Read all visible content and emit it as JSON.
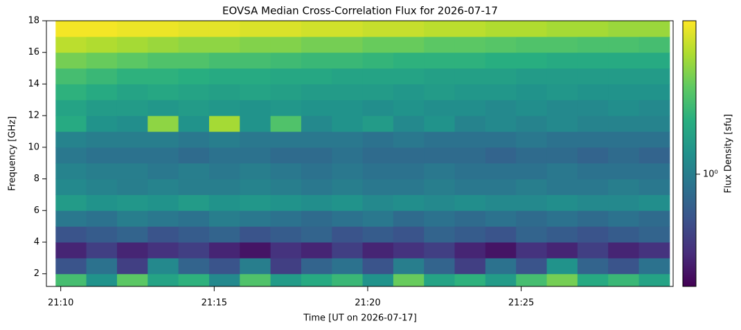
{
  "chart_data": {
    "type": "heatmap",
    "title": "EOVSA Median Cross-Correlation Flux for 2026-07-17",
    "x_label": "Time [UT on 2026-07-17]",
    "y_label": "Frequency [GHz]",
    "colorbar_label": "Flux Density [sfu]",
    "colormap": "viridis",
    "color_scale": "log",
    "clim": [
      0.4,
      3.5
    ],
    "cticks": [
      {
        "value": 1,
        "label": "10⁰"
      }
    ],
    "xlim": [
      "21:09:32",
      "21:29:57"
    ],
    "xticks": [
      "21:10",
      "21:15",
      "21:20",
      "21:25"
    ],
    "ylim": [
      1.2,
      18
    ],
    "yticks": [
      2,
      4,
      6,
      8,
      10,
      12,
      14,
      16,
      18
    ],
    "x": [
      "21:09:50",
      "21:10:50",
      "21:11:50",
      "21:12:50",
      "21:13:50",
      "21:14:50",
      "21:15:50",
      "21:16:50",
      "21:17:50",
      "21:18:50",
      "21:19:50",
      "21:20:50",
      "21:21:50",
      "21:22:50",
      "21:23:50",
      "21:24:50",
      "21:25:50",
      "21:26:50",
      "21:27:50",
      "21:28:50"
    ],
    "y": [
      1.5,
      2.5,
      3.5,
      4.5,
      5.5,
      6.5,
      7.5,
      8.5,
      9.5,
      10.5,
      11.5,
      12.5,
      13.5,
      14.5,
      15.5,
      16.5,
      17.5
    ],
    "z": [
      [
        1.8,
        1.2,
        2.0,
        1.4,
        1.6,
        1.1,
        1.9,
        1.3,
        1.5,
        1.7,
        1.2,
        2.1,
        1.4,
        1.6,
        1.3,
        1.8,
        2.2,
        1.5,
        1.7,
        1.4
      ],
      [
        0.7,
        0.9,
        0.6,
        1.1,
        0.8,
        0.7,
        1.0,
        0.6,
        0.8,
        0.9,
        0.7,
        1.0,
        0.8,
        0.6,
        0.9,
        0.7,
        1.2,
        0.8,
        0.7,
        0.9
      ],
      [
        0.5,
        0.6,
        0.5,
        0.55,
        0.6,
        0.5,
        0.45,
        0.55,
        0.5,
        0.6,
        0.5,
        0.55,
        0.6,
        0.5,
        0.45,
        0.55,
        0.5,
        0.6,
        0.5,
        0.55
      ],
      [
        0.7,
        0.75,
        0.8,
        0.7,
        0.75,
        0.8,
        0.7,
        0.75,
        0.8,
        0.7,
        0.75,
        0.7,
        0.8,
        0.75,
        0.7,
        0.8,
        0.75,
        0.7,
        0.75,
        0.8
      ],
      [
        0.95,
        0.9,
        1.0,
        0.95,
        0.9,
        1.0,
        0.95,
        0.9,
        0.85,
        0.9,
        0.95,
        0.85,
        0.9,
        0.85,
        0.9,
        0.85,
        0.9,
        0.85,
        0.9,
        0.85
      ],
      [
        1.3,
        1.2,
        1.25,
        1.2,
        1.3,
        1.2,
        1.25,
        1.2,
        1.15,
        1.2,
        1.1,
        1.15,
        1.1,
        1.15,
        1.1,
        1.1,
        1.15,
        1.1,
        1.1,
        1.15
      ],
      [
        1.1,
        1.05,
        1.0,
        1.05,
        1.0,
        1.0,
        1.05,
        1.0,
        0.95,
        1.0,
        0.95,
        0.95,
        1.0,
        0.95,
        0.95,
        1.0,
        0.95,
        0.95,
        1.0,
        0.95
      ],
      [
        1.05,
        1.0,
        1.0,
        0.95,
        1.0,
        0.95,
        1.0,
        0.95,
        0.9,
        0.95,
        0.9,
        0.9,
        0.95,
        0.9,
        0.9,
        0.9,
        0.95,
        0.9,
        0.9,
        0.9
      ],
      [
        0.95,
        0.9,
        0.9,
        0.9,
        0.85,
        0.9,
        0.9,
        0.85,
        0.85,
        0.9,
        0.85,
        0.85,
        0.85,
        0.85,
        0.8,
        0.85,
        0.85,
        0.8,
        0.85,
        0.8
      ],
      [
        1.05,
        1.0,
        1.0,
        1.0,
        0.95,
        1.0,
        0.95,
        0.95,
        0.95,
        0.95,
        0.9,
        0.95,
        0.9,
        0.9,
        0.9,
        0.95,
        0.9,
        0.9,
        0.9,
        0.9
      ],
      [
        1.5,
        1.2,
        1.15,
        2.4,
        1.2,
        2.6,
        1.2,
        1.9,
        1.1,
        1.2,
        1.3,
        1.1,
        1.2,
        1.05,
        1.1,
        1.05,
        1.1,
        1.05,
        1.05,
        1.05
      ],
      [
        1.4,
        1.3,
        1.3,
        1.25,
        1.3,
        1.25,
        1.2,
        1.25,
        1.2,
        1.2,
        1.15,
        1.2,
        1.15,
        1.15,
        1.1,
        1.15,
        1.1,
        1.1,
        1.15,
        1.1
      ],
      [
        1.6,
        1.5,
        1.4,
        1.45,
        1.4,
        1.35,
        1.4,
        1.35,
        1.3,
        1.3,
        1.3,
        1.25,
        1.3,
        1.25,
        1.25,
        1.2,
        1.25,
        1.2,
        1.2,
        1.2
      ],
      [
        1.8,
        1.7,
        1.6,
        1.6,
        1.55,
        1.5,
        1.5,
        1.45,
        1.45,
        1.4,
        1.4,
        1.4,
        1.35,
        1.35,
        1.35,
        1.3,
        1.3,
        1.3,
        1.3,
        1.3
      ],
      [
        2.2,
        2.1,
        2.0,
        1.9,
        1.9,
        1.8,
        1.8,
        1.75,
        1.7,
        1.7,
        1.65,
        1.6,
        1.6,
        1.6,
        1.55,
        1.55,
        1.5,
        1.5,
        1.5,
        1.5
      ],
      [
        2.8,
        2.7,
        2.6,
        2.5,
        2.4,
        2.4,
        2.3,
        2.3,
        2.2,
        2.2,
        2.1,
        2.1,
        2.0,
        2.0,
        1.95,
        1.9,
        1.9,
        1.85,
        1.85,
        1.8
      ],
      [
        3.4,
        3.4,
        3.3,
        3.3,
        3.2,
        3.2,
        3.1,
        3.1,
        3.0,
        3.0,
        2.9,
        2.9,
        2.8,
        2.8,
        2.7,
        2.7,
        2.6,
        2.6,
        2.5,
        2.5
      ]
    ]
  }
}
